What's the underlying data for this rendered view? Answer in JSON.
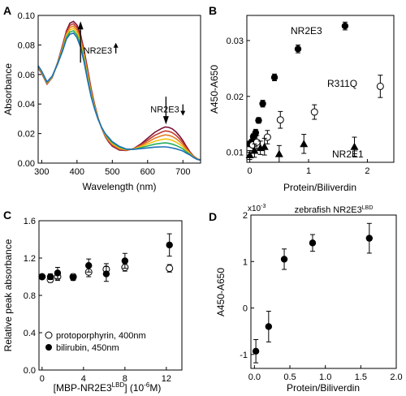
{
  "chart_data": [
    {
      "panel": "A",
      "type": "line",
      "xlabel": "Wavelength (nm)",
      "ylabel": "Absorbance",
      "xlim": [
        290,
        750
      ],
      "ylim": [
        0,
        0.1
      ],
      "xticks": [
        300,
        400,
        500,
        600,
        700
      ],
      "yticks": [
        0.0,
        0.02,
        0.04,
        0.06,
        0.08,
        0.1
      ],
      "ytick_labels": [
        "0.00",
        "0.02",
        "0.04",
        "0.06",
        "0.08",
        "0.10"
      ],
      "annotations": [
        {
          "text": "NR2E3",
          "direction": "up",
          "at_x": 418,
          "at_y": 0.0765
        },
        {
          "text": "NR2E3",
          "direction": "down",
          "at_x": 608,
          "at_y": 0.0365
        }
      ],
      "curve_x": [
        290,
        300,
        315,
        330,
        345,
        360,
        370,
        380,
        390,
        400,
        410,
        420,
        430,
        440,
        450,
        460,
        470,
        480,
        490,
        500,
        520,
        540,
        560,
        580,
        600,
        620,
        640,
        650,
        660,
        670,
        680,
        690,
        700,
        710,
        720,
        730,
        740,
        750
      ],
      "series": [
        {
          "color": "#7a1238",
          "values": [
            0.0645,
            0.0608,
            0.0535,
            0.058,
            0.068,
            0.0805,
            0.0895,
            0.0948,
            0.096,
            0.0935,
            0.087,
            0.0765,
            0.0635,
            0.0505,
            0.0395,
            0.0305,
            0.0235,
            0.018,
            0.0142,
            0.0115,
            0.0088,
            0.0085,
            0.0098,
            0.0128,
            0.0168,
            0.0208,
            0.0235,
            0.0245,
            0.0242,
            0.0232,
            0.0212,
            0.0185,
            0.0152,
            0.0112,
            0.0075,
            0.0048,
            0.003,
            0.002
          ]
        },
        {
          "color": "#c0392b",
          "values": [
            0.0648,
            0.0611,
            0.0538,
            0.0582,
            0.0678,
            0.0797,
            0.0884,
            0.0933,
            0.0944,
            0.0918,
            0.0853,
            0.0749,
            0.062,
            0.0494,
            0.0389,
            0.0303,
            0.0236,
            0.0184,
            0.0148,
            0.0121,
            0.0093,
            0.0087,
            0.0097,
            0.0122,
            0.0155,
            0.0188,
            0.021,
            0.0218,
            0.0215,
            0.0206,
            0.0189,
            0.0166,
            0.0138,
            0.0103,
            0.0071,
            0.0046,
            0.0029,
            0.002
          ]
        },
        {
          "color": "#e67e22",
          "values": [
            0.0651,
            0.0614,
            0.0541,
            0.0584,
            0.0676,
            0.0789,
            0.0873,
            0.0918,
            0.0928,
            0.0901,
            0.0836,
            0.0733,
            0.0605,
            0.0483,
            0.0383,
            0.0301,
            0.0237,
            0.0188,
            0.0154,
            0.0127,
            0.0098,
            0.0089,
            0.0096,
            0.0116,
            0.0142,
            0.0168,
            0.0185,
            0.0191,
            0.0188,
            0.018,
            0.0166,
            0.0147,
            0.0124,
            0.0094,
            0.0067,
            0.0044,
            0.0028,
            0.002
          ]
        },
        {
          "color": "#f1c40f",
          "values": [
            0.0654,
            0.0617,
            0.0544,
            0.0586,
            0.0674,
            0.0781,
            0.0862,
            0.0903,
            0.0912,
            0.0884,
            0.0819,
            0.0717,
            0.059,
            0.0472,
            0.0377,
            0.0299,
            0.0238,
            0.0192,
            0.016,
            0.0133,
            0.0103,
            0.0091,
            0.0095,
            0.011,
            0.0129,
            0.0148,
            0.016,
            0.0164,
            0.0161,
            0.0154,
            0.0143,
            0.0128,
            0.011,
            0.0085,
            0.0063,
            0.0042,
            0.0027,
            0.002
          ]
        },
        {
          "color": "#27ae60",
          "values": [
            0.0657,
            0.062,
            0.0547,
            0.0588,
            0.0672,
            0.0773,
            0.0851,
            0.0888,
            0.0896,
            0.0867,
            0.0802,
            0.0701,
            0.0575,
            0.0461,
            0.0371,
            0.0297,
            0.0239,
            0.0196,
            0.0166,
            0.0139,
            0.0108,
            0.0093,
            0.0094,
            0.0104,
            0.0116,
            0.0128,
            0.0135,
            0.0137,
            0.0134,
            0.0128,
            0.012,
            0.0109,
            0.0096,
            0.0076,
            0.0059,
            0.004,
            0.0026,
            0.002
          ]
        },
        {
          "color": "#1f6fb5",
          "values": [
            0.066,
            0.0623,
            0.055,
            0.059,
            0.067,
            0.0765,
            0.084,
            0.0873,
            0.088,
            0.085,
            0.0785,
            0.0685,
            0.056,
            0.045,
            0.0365,
            0.0295,
            0.024,
            0.02,
            0.0172,
            0.0145,
            0.0113,
            0.0095,
            0.0093,
            0.0098,
            0.0103,
            0.0108,
            0.011,
            0.011,
            0.0107,
            0.0102,
            0.0097,
            0.009,
            0.0082,
            0.0067,
            0.0055,
            0.0038,
            0.0025,
            0.002
          ]
        }
      ]
    },
    {
      "panel": "B",
      "type": "scatter",
      "xlabel": "Protein/Biliverdin",
      "ylabel": "A450-A650",
      "xlim": [
        -0.05,
        2.45
      ],
      "ylim": [
        0.0082,
        0.0345
      ],
      "xticks": [
        0,
        1,
        2
      ],
      "yticks": [
        0.01,
        0.02,
        0.03
      ],
      "ytick_labels": [
        "0.01",
        "0.02",
        "0.03"
      ],
      "series": [
        {
          "name": "NR2E3",
          "marker": "filled-circle",
          "points": [
            {
              "x": 0.0,
              "y": 0.0115,
              "err": 0.0005
            },
            {
              "x": 0.03,
              "y": 0.0118,
              "err": 0.0005
            },
            {
              "x": 0.06,
              "y": 0.0128,
              "err": 0.0005
            },
            {
              "x": 0.1,
              "y": 0.0135,
              "err": 0.0006
            },
            {
              "x": 0.15,
              "y": 0.0157,
              "err": 0.0005
            },
            {
              "x": 0.22,
              "y": 0.0187,
              "err": 0.0006
            },
            {
              "x": 0.42,
              "y": 0.0234,
              "err": 0.0006
            },
            {
              "x": 0.82,
              "y": 0.0285,
              "err": 0.0007
            },
            {
              "x": 1.62,
              "y": 0.0326,
              "err": 0.0007
            }
          ]
        },
        {
          "name": "R311Q",
          "marker": "open-circle",
          "points": [
            {
              "x": 0.05,
              "y": 0.0113,
              "err": 0.0012
            },
            {
              "x": 0.12,
              "y": 0.0118,
              "err": 0.0012
            },
            {
              "x": 0.3,
              "y": 0.0127,
              "err": 0.0012
            },
            {
              "x": 0.52,
              "y": 0.0158,
              "err": 0.0015
            },
            {
              "x": 1.1,
              "y": 0.0172,
              "err": 0.0013
            },
            {
              "x": 2.22,
              "y": 0.0218,
              "err": 0.002
            }
          ]
        },
        {
          "name": "NR2E1",
          "marker": "filled-triangle",
          "points": [
            {
              "x": 0.0,
              "y": 0.0095,
              "err": 0.0008
            },
            {
              "x": 0.08,
              "y": 0.0103,
              "err": 0.0012
            },
            {
              "x": 0.18,
              "y": 0.0108,
              "err": 0.0012
            },
            {
              "x": 0.25,
              "y": 0.011,
              "err": 0.0015
            },
            {
              "x": 0.5,
              "y": 0.0097,
              "err": 0.0015
            },
            {
              "x": 0.92,
              "y": 0.0115,
              "err": 0.0017
            },
            {
              "x": 1.78,
              "y": 0.011,
              "err": 0.0017
            }
          ]
        }
      ]
    },
    {
      "panel": "C",
      "type": "scatter",
      "xlabel_main": "[MBP-NR2E3",
      "xlabel_sup": "LBD",
      "xlabel_tail": "] (10",
      "xlabel_exp": "-6",
      "xlabel_unit": "M)",
      "ylabel": "Relative peak absorbance",
      "xlim": [
        -0.3,
        13.5
      ],
      "ylim": [
        0.0,
        1.6
      ],
      "xticks": [
        0,
        4,
        8,
        12
      ],
      "yticks": [
        0.0,
        0.4,
        0.8,
        1.2,
        1.6
      ],
      "ytick_labels": [
        "0.0",
        "0.4",
        "0.8",
        "1.2",
        "1.6"
      ],
      "legend": [
        "protoporphyrin, 400nm",
        "bilirubin, 450nm"
      ],
      "series": [
        {
          "name": "protoporphyrin, 400nm",
          "marker": "open-circle",
          "points": [
            {
              "x": 0.0,
              "y": 1.0,
              "err": 0.0
            },
            {
              "x": 0.8,
              "y": 0.97,
              "err": 0.03
            },
            {
              "x": 1.5,
              "y": 1.0,
              "err": 0.04
            },
            {
              "x": 3.0,
              "y": 1.0,
              "err": 0.03
            },
            {
              "x": 4.5,
              "y": 1.05,
              "err": 0.05
            },
            {
              "x": 6.2,
              "y": 1.08,
              "err": 0.06
            },
            {
              "x": 8.0,
              "y": 1.1,
              "err": 0.04
            },
            {
              "x": 12.3,
              "y": 1.09,
              "err": 0.04
            }
          ]
        },
        {
          "name": "bilirubin, 450nm",
          "marker": "filled-circle",
          "points": [
            {
              "x": 0.0,
              "y": 1.0,
              "err": 0.0
            },
            {
              "x": 0.8,
              "y": 1.0,
              "err": 0.03
            },
            {
              "x": 1.5,
              "y": 1.04,
              "err": 0.06
            },
            {
              "x": 3.0,
              "y": 0.99,
              "err": 0.03
            },
            {
              "x": 4.5,
              "y": 1.12,
              "err": 0.07
            },
            {
              "x": 6.2,
              "y": 1.03,
              "err": 0.08
            },
            {
              "x": 8.0,
              "y": 1.17,
              "err": 0.08
            },
            {
              "x": 12.3,
              "y": 1.34,
              "err": 0.12
            }
          ]
        }
      ]
    },
    {
      "panel": "D",
      "type": "scatter",
      "title_main": "zebrafish NR2E3",
      "title_sup": "LBD",
      "xlabel": "Protein/Biliverdin",
      "ylabel": "A450-A650",
      "scale_base": "x10",
      "scale_exp": "-3",
      "xlim": [
        -0.05,
        2.0
      ],
      "ylim": [
        -1.3,
        2.0
      ],
      "xticks": [
        0.0,
        0.5,
        1.0,
        1.5,
        2.0
      ],
      "xtick_labels": [
        "0.0",
        "0.5",
        "1.0",
        "1.5",
        "2.0"
      ],
      "yticks": [
        -1,
        0,
        1,
        2
      ],
      "ytick_labels": [
        "-1",
        "0",
        "1",
        "2"
      ],
      "series": [
        {
          "name": "zebrafish NR2E3",
          "marker": "filled-circle",
          "points": [
            {
              "x": 0.02,
              "y": -0.93,
              "err": 0.25
            },
            {
              "x": 0.2,
              "y": -0.4,
              "err": 0.33
            },
            {
              "x": 0.42,
              "y": 1.05,
              "err": 0.22
            },
            {
              "x": 0.82,
              "y": 1.4,
              "err": 0.18
            },
            {
              "x": 1.62,
              "y": 1.5,
              "err": 0.32
            }
          ]
        }
      ]
    }
  ],
  "panels": {
    "A": {
      "letter": "A"
    },
    "B": {
      "letter": "B",
      "labels": [
        "NR2E3",
        "R311Q",
        "NR2E1"
      ]
    },
    "C": {
      "letter": "C"
    },
    "D": {
      "letter": "D"
    }
  }
}
